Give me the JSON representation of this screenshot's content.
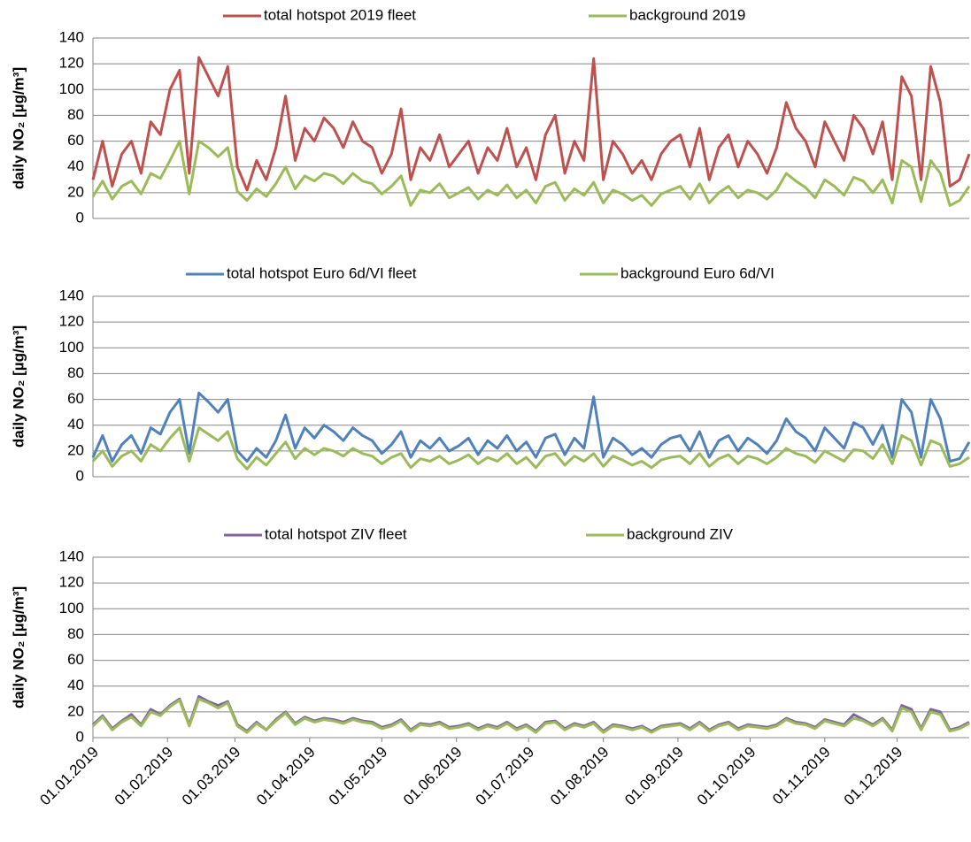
{
  "chart_data": [
    {
      "type": "line",
      "ylabel": "daily NO₂ [µg/m³]",
      "xlim": [
        0,
        364
      ],
      "ylim": [
        0,
        140
      ],
      "yticks": [
        0,
        20,
        40,
        60,
        80,
        100,
        120,
        140
      ],
      "grid": true,
      "legend": "top",
      "x": [
        0,
        4,
        8,
        12,
        16,
        20,
        24,
        28,
        32,
        36,
        40,
        44,
        48,
        52,
        56,
        60,
        64,
        68,
        72,
        76,
        80,
        84,
        88,
        92,
        96,
        100,
        104,
        108,
        112,
        116,
        120,
        124,
        128,
        132,
        136,
        140,
        144,
        148,
        152,
        156,
        160,
        164,
        168,
        172,
        176,
        180,
        184,
        188,
        192,
        196,
        200,
        204,
        208,
        212,
        216,
        220,
        224,
        228,
        232,
        236,
        240,
        244,
        248,
        252,
        256,
        260,
        264,
        268,
        272,
        276,
        280,
        284,
        288,
        292,
        296,
        300,
        304,
        308,
        312,
        316,
        320,
        324,
        328,
        332,
        336,
        340,
        344,
        348,
        352,
        356,
        360,
        364
      ],
      "series": [
        {
          "name": "total hotspot 2019 fleet",
          "color": "#c0504d",
          "values": [
            30,
            60,
            25,
            50,
            60,
            35,
            75,
            65,
            100,
            115,
            35,
            125,
            110,
            95,
            118,
            40,
            22,
            45,
            30,
            55,
            95,
            45,
            70,
            60,
            78,
            70,
            55,
            75,
            60,
            55,
            35,
            50,
            85,
            30,
            55,
            45,
            65,
            40,
            50,
            60,
            35,
            55,
            45,
            70,
            40,
            55,
            30,
            65,
            80,
            35,
            60,
            45,
            124,
            30,
            60,
            50,
            35,
            45,
            30,
            50,
            60,
            65,
            40,
            70,
            30,
            55,
            65,
            40,
            60,
            50,
            35,
            55,
            90,
            70,
            60,
            40,
            75,
            60,
            45,
            80,
            70,
            50,
            75,
            30,
            110,
            95,
            30,
            118,
            90,
            25,
            30,
            50
          ]
        },
        {
          "name": "background 2019",
          "color": "#9bbb59",
          "values": [
            17,
            29,
            15,
            25,
            29,
            19,
            35,
            31,
            45,
            60,
            19,
            60,
            55,
            48,
            55,
            21,
            14,
            23,
            17,
            27,
            40,
            23,
            33,
            29,
            35,
            33,
            27,
            35,
            29,
            27,
            19,
            25,
            33,
            10,
            22,
            20,
            27,
            16,
            20,
            24,
            15,
            22,
            18,
            26,
            16,
            22,
            12,
            25,
            28,
            14,
            23,
            18,
            28,
            12,
            22,
            19,
            14,
            18,
            10,
            19,
            22,
            25,
            15,
            27,
            12,
            20,
            25,
            16,
            22,
            20,
            15,
            22,
            35,
            29,
            24,
            16,
            30,
            25,
            18,
            32,
            29,
            20,
            30,
            12,
            45,
            40,
            13,
            45,
            35,
            10,
            14,
            25
          ]
        }
      ]
    },
    {
      "type": "line",
      "ylabel": "daily NO₂ [µg/m³]",
      "xlim": [
        0,
        364
      ],
      "ylim": [
        0,
        140
      ],
      "yticks": [
        0,
        20,
        40,
        60,
        80,
        100,
        120,
        140
      ],
      "grid": true,
      "legend": "top",
      "x": [
        0,
        4,
        8,
        12,
        16,
        20,
        24,
        28,
        32,
        36,
        40,
        44,
        48,
        52,
        56,
        60,
        64,
        68,
        72,
        76,
        80,
        84,
        88,
        92,
        96,
        100,
        104,
        108,
        112,
        116,
        120,
        124,
        128,
        132,
        136,
        140,
        144,
        148,
        152,
        156,
        160,
        164,
        168,
        172,
        176,
        180,
        184,
        188,
        192,
        196,
        200,
        204,
        208,
        212,
        216,
        220,
        224,
        228,
        232,
        236,
        240,
        244,
        248,
        252,
        256,
        260,
        264,
        268,
        272,
        276,
        280,
        284,
        288,
        292,
        296,
        300,
        304,
        308,
        312,
        316,
        320,
        324,
        328,
        332,
        336,
        340,
        344,
        348,
        352,
        356,
        360,
        364
      ],
      "series": [
        {
          "name": "total hotspot Euro 6d/VI fleet",
          "color": "#4f81bd",
          "values": [
            15,
            32,
            12,
            25,
            32,
            18,
            38,
            33,
            50,
            60,
            18,
            65,
            58,
            50,
            60,
            20,
            12,
            22,
            15,
            28,
            48,
            22,
            38,
            30,
            40,
            35,
            28,
            38,
            32,
            28,
            18,
            25,
            35,
            15,
            28,
            22,
            30,
            20,
            24,
            30,
            17,
            28,
            22,
            32,
            20,
            27,
            15,
            30,
            33,
            17,
            30,
            22,
            62,
            15,
            30,
            25,
            17,
            22,
            15,
            25,
            30,
            32,
            20,
            35,
            15,
            28,
            32,
            20,
            30,
            25,
            18,
            28,
            45,
            35,
            30,
            20,
            38,
            30,
            22,
            42,
            38,
            25,
            40,
            15,
            60,
            50,
            15,
            60,
            45,
            12,
            14,
            27
          ]
        },
        {
          "name": "background Euro 6d/VI",
          "color": "#9bbb59",
          "values": [
            12,
            20,
            8,
            16,
            20,
            12,
            25,
            20,
            30,
            38,
            12,
            38,
            33,
            28,
            35,
            14,
            6,
            15,
            9,
            18,
            27,
            14,
            22,
            17,
            22,
            20,
            16,
            22,
            18,
            16,
            10,
            15,
            18,
            7,
            14,
            12,
            16,
            10,
            13,
            17,
            10,
            15,
            12,
            18,
            10,
            15,
            7,
            16,
            18,
            9,
            16,
            12,
            18,
            8,
            16,
            13,
            9,
            12,
            7,
            13,
            15,
            16,
            10,
            18,
            8,
            14,
            17,
            10,
            16,
            14,
            10,
            15,
            22,
            18,
            16,
            11,
            20,
            16,
            12,
            21,
            20,
            14,
            25,
            10,
            32,
            28,
            9,
            28,
            25,
            8,
            10,
            15
          ]
        }
      ]
    },
    {
      "type": "line",
      "ylabel": "daily NO₂ [µg/m³]",
      "xlim": [
        0,
        364
      ],
      "ylim": [
        0,
        140
      ],
      "yticks": [
        0,
        20,
        40,
        60,
        80,
        100,
        120,
        140
      ],
      "grid": true,
      "legend": "top",
      "xticks": [
        {
          "value": 0,
          "label": "01.01.2019"
        },
        {
          "value": 31,
          "label": "01.02.2019"
        },
        {
          "value": 59,
          "label": "01.03.2019"
        },
        {
          "value": 90,
          "label": "01.04.2019"
        },
        {
          "value": 120,
          "label": "01.05.2019"
        },
        {
          "value": 151,
          "label": "01.06.2019"
        },
        {
          "value": 181,
          "label": "01.07.2019"
        },
        {
          "value": 212,
          "label": "01.08.2019"
        },
        {
          "value": 243,
          "label": "01.09.2019"
        },
        {
          "value": 273,
          "label": "01.10.2019"
        },
        {
          "value": 304,
          "label": "01.11.2019"
        },
        {
          "value": 334,
          "label": "01.12.2019"
        }
      ],
      "x": [
        0,
        4,
        8,
        12,
        16,
        20,
        24,
        28,
        32,
        36,
        40,
        44,
        48,
        52,
        56,
        60,
        64,
        68,
        72,
        76,
        80,
        84,
        88,
        92,
        96,
        100,
        104,
        108,
        112,
        116,
        120,
        124,
        128,
        132,
        136,
        140,
        144,
        148,
        152,
        156,
        160,
        164,
        168,
        172,
        176,
        180,
        184,
        188,
        192,
        196,
        200,
        204,
        208,
        212,
        216,
        220,
        224,
        228,
        232,
        236,
        240,
        244,
        248,
        252,
        256,
        260,
        264,
        268,
        272,
        276,
        280,
        284,
        288,
        292,
        296,
        300,
        304,
        308,
        312,
        316,
        320,
        324,
        328,
        332,
        336,
        340,
        344,
        348,
        352,
        356,
        360,
        364
      ],
      "series": [
        {
          "name": "total hotspot ZIV fleet",
          "color": "#8064a2",
          "values": [
            10,
            17,
            7,
            13,
            18,
            10,
            22,
            18,
            25,
            30,
            10,
            32,
            28,
            25,
            28,
            10,
            5,
            12,
            6,
            14,
            20,
            11,
            16,
            13,
            15,
            14,
            12,
            15,
            13,
            12,
            8,
            10,
            14,
            6,
            11,
            10,
            12,
            8,
            9,
            11,
            7,
            10,
            8,
            12,
            7,
            10,
            5,
            12,
            13,
            7,
            11,
            9,
            12,
            5,
            10,
            9,
            7,
            9,
            5,
            9,
            10,
            11,
            7,
            12,
            6,
            10,
            12,
            7,
            10,
            9,
            8,
            10,
            15,
            12,
            11,
            8,
            14,
            12,
            10,
            18,
            14,
            10,
            15,
            6,
            25,
            22,
            7,
            22,
            20,
            6,
            8,
            12
          ]
        },
        {
          "name": "background ZIV",
          "color": "#9bbb59",
          "values": [
            9,
            16,
            6,
            12,
            16,
            9,
            20,
            17,
            24,
            29,
            9,
            30,
            27,
            23,
            27,
            9,
            4,
            11,
            6,
            13,
            19,
            10,
            15,
            12,
            14,
            13,
            11,
            14,
            12,
            11,
            7,
            9,
            13,
            5,
            10,
            9,
            11,
            7,
            8,
            10,
            6,
            9,
            7,
            11,
            6,
            9,
            4,
            11,
            12,
            6,
            10,
            8,
            11,
            4,
            9,
            8,
            6,
            8,
            4,
            8,
            9,
            10,
            6,
            11,
            5,
            9,
            11,
            6,
            9,
            8,
            7,
            9,
            14,
            11,
            10,
            7,
            13,
            11,
            9,
            15,
            13,
            9,
            14,
            5,
            23,
            20,
            6,
            20,
            18,
            5,
            7,
            11
          ]
        }
      ]
    }
  ]
}
